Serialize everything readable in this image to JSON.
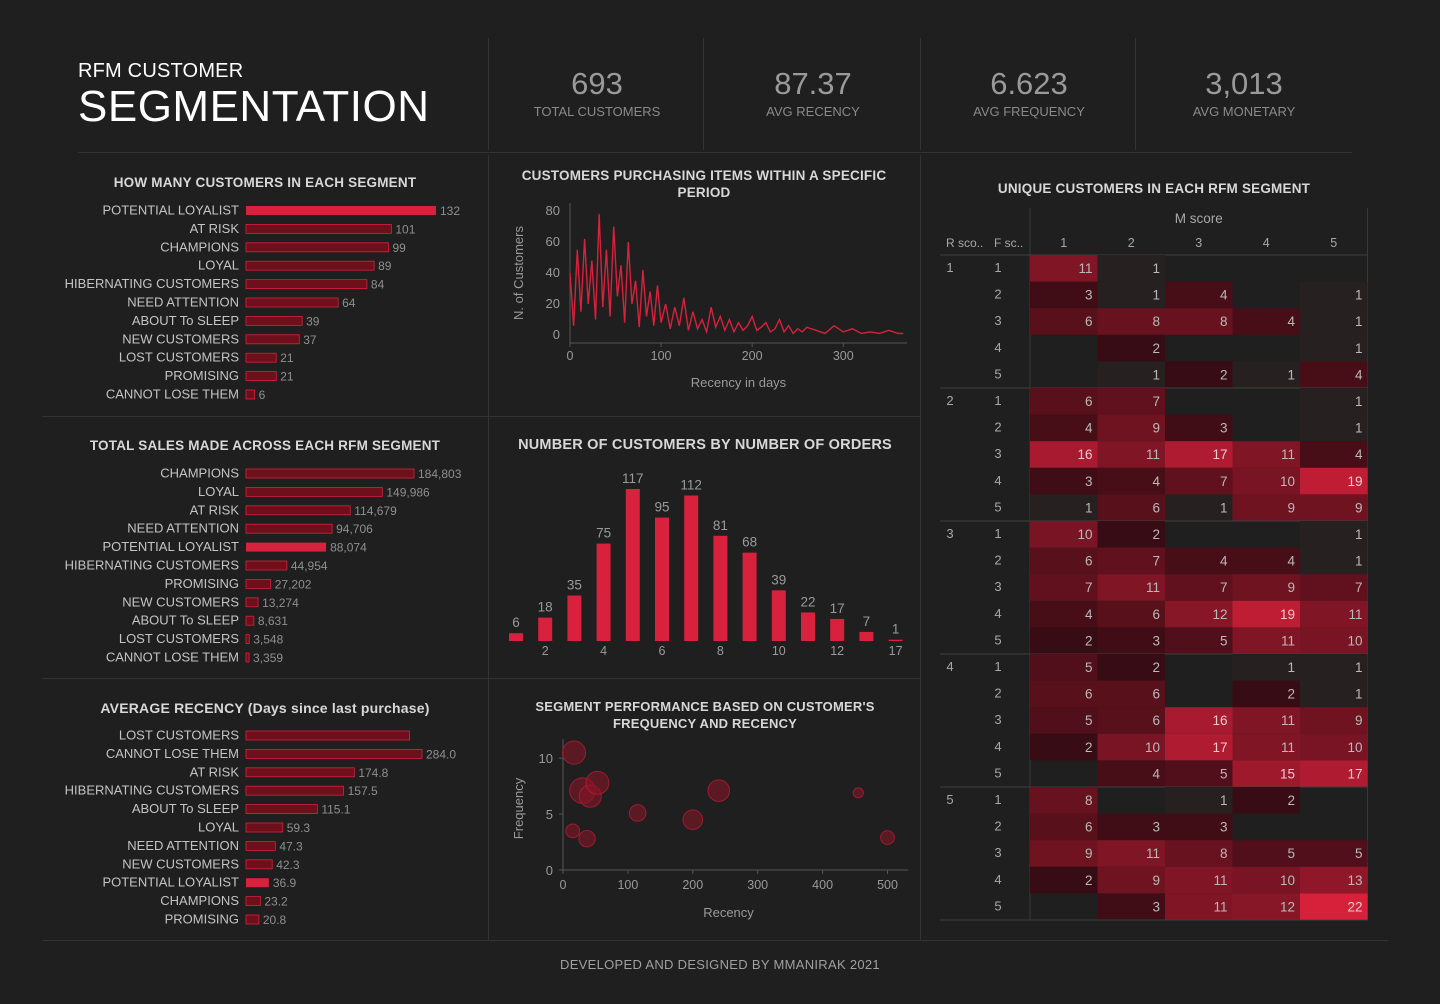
{
  "header": {
    "title_small": "RFM CUSTOMER",
    "title_big": "SEGMENTATION"
  },
  "kpis": [
    {
      "value": "693",
      "label": "TOTAL CUSTOMERS"
    },
    {
      "value": "87.37",
      "label": "AVG RECENCY"
    },
    {
      "value": "6.623",
      "label": "AVG FREQUENCY"
    },
    {
      "value": "3,013",
      "label": "AVG MONETARY"
    }
  ],
  "footer": "DEVELOPED AND DESIGNED BY MMANIRAK 2021",
  "colors": {
    "bar": "#d7213d",
    "bar_dark": "#6e0f1c",
    "background": "#1f1f1f"
  },
  "chart_data": [
    {
      "id": "segment_counts",
      "type": "bar",
      "title": "HOW MANY CUSTOMERS IN EACH SEGMENT",
      "orientation": "horizontal",
      "categories": [
        "POTENTIAL LOYALIST",
        "AT RISK",
        "CHAMPIONS",
        "LOYAL",
        "HIBERNATING CUSTOMERS",
        "NEED ATTENTION",
        "ABOUT To SLEEP",
        "NEW CUSTOMERS",
        "LOST CUSTOMERS",
        "PROMISING",
        "CANNOT LOSE THEM"
      ],
      "values": [
        132,
        101,
        99,
        89,
        84,
        64,
        39,
        37,
        21,
        21,
        6
      ],
      "labels": [
        "132",
        "101",
        "99",
        "89",
        "84",
        "64",
        "39",
        "37",
        "21",
        "21",
        "6"
      ],
      "highlight": [
        0
      ]
    },
    {
      "id": "segment_sales",
      "type": "bar",
      "title": "TOTAL SALES MADE ACROSS EACH RFM SEGMENT",
      "orientation": "horizontal",
      "categories": [
        "CHAMPIONS",
        "LOYAL",
        "AT RISK",
        "NEED ATTENTION",
        "POTENTIAL LOYALIST",
        "HIBERNATING CUSTOMERS",
        "PROMISING",
        "NEW CUSTOMERS",
        "ABOUT To SLEEP",
        "LOST CUSTOMERS",
        "CANNOT LOSE THEM"
      ],
      "values": [
        184803,
        149986,
        114679,
        94706,
        88074,
        44954,
        27202,
        13274,
        8631,
        3548,
        3359
      ],
      "labels": [
        "184,803",
        "149,986",
        "114,679",
        "94,706",
        "88,074",
        "44,954",
        "27,202",
        "13,274",
        "8,631",
        "3,548",
        "3,359"
      ],
      "highlight": [
        4
      ]
    },
    {
      "id": "segment_recency",
      "type": "bar",
      "title": "AVERAGE RECENCY (Days since last purchase)",
      "orientation": "horizontal",
      "categories": [
        "LOST CUSTOMERS",
        "CANNOT LOSE THEM",
        "AT RISK",
        "HIBERNATING CUSTOMERS",
        "ABOUT To SLEEP",
        "LOYAL",
        "NEED ATTENTION",
        "NEW CUSTOMERS",
        "POTENTIAL LOYALIST",
        "CHAMPIONS",
        "PROMISING"
      ],
      "values": [
        264.0,
        284.0,
        174.8,
        157.5,
        115.1,
        59.3,
        47.3,
        42.3,
        36.9,
        23.2,
        20.8
      ],
      "labels": [
        "",
        "284.0",
        "174.8",
        "157.5",
        "115.1",
        "59.3",
        "47.3",
        "42.3",
        "36.9",
        "23.2",
        "20.8"
      ],
      "highlight": [
        8
      ]
    },
    {
      "id": "recency_distribution",
      "type": "line",
      "title": "CUSTOMERS PURCHASING ITEMS WITHIN A SPECIFIC PERIOD",
      "xlabel": "Recency in days",
      "ylabel": "N. of Customers",
      "xlim": [
        0,
        370
      ],
      "ylim": [
        0,
        80
      ],
      "xticks": [
        0,
        100,
        200,
        300
      ],
      "yticks": [
        0,
        20,
        40,
        60,
        80
      ],
      "x": [
        0,
        4,
        8,
        12,
        16,
        20,
        24,
        28,
        32,
        36,
        40,
        44,
        48,
        52,
        56,
        60,
        64,
        68,
        72,
        76,
        80,
        84,
        88,
        92,
        96,
        100,
        105,
        110,
        115,
        120,
        125,
        130,
        135,
        140,
        145,
        150,
        155,
        160,
        165,
        170,
        175,
        180,
        185,
        190,
        195,
        200,
        205,
        210,
        215,
        220,
        225,
        230,
        235,
        240,
        245,
        250,
        255,
        260,
        270,
        280,
        290,
        300,
        310,
        320,
        330,
        340,
        350,
        360,
        366
      ],
      "y": [
        40,
        6,
        55,
        15,
        62,
        20,
        48,
        10,
        78,
        18,
        55,
        12,
        70,
        25,
        45,
        8,
        60,
        20,
        35,
        5,
        42,
        12,
        28,
        6,
        32,
        8,
        20,
        4,
        18,
        6,
        24,
        3,
        15,
        4,
        10,
        2,
        18,
        5,
        12,
        3,
        10,
        2,
        8,
        3,
        6,
        12,
        3,
        5,
        8,
        2,
        4,
        10,
        2,
        6,
        1,
        4,
        2,
        5,
        3,
        1,
        6,
        2,
        4,
        1,
        2,
        1,
        3,
        1,
        1
      ]
    },
    {
      "id": "orders_histogram",
      "type": "bar",
      "title": "NUMBER OF CUSTOMERS BY NUMBER OF ORDERS",
      "categories": [
        1,
        2,
        3,
        4,
        5,
        6,
        7,
        8,
        9,
        10,
        11,
        12,
        13,
        14
      ],
      "x_tick_labels": [
        "",
        "2",
        "",
        "4",
        "",
        "6",
        "",
        "8",
        "",
        "10",
        "",
        "12",
        "",
        "17"
      ],
      "values": [
        6,
        18,
        35,
        75,
        117,
        95,
        112,
        81,
        68,
        39,
        22,
        17,
        7,
        1
      ]
    },
    {
      "id": "segment_bubbles",
      "type": "scatter",
      "title": "SEGMENT PERFORMANCE BASED ON CUSTOMER'S FREQUENCY AND RECENCY",
      "xlabel": "Recency",
      "ylabel": "Frequency",
      "xlim": [
        0,
        510
      ],
      "ylim": [
        0,
        11
      ],
      "xticks": [
        0,
        100,
        200,
        300,
        400,
        500
      ],
      "yticks": [
        0,
        5,
        10
      ],
      "points": [
        {
          "x": 17,
          "y": 10.5,
          "size": 101
        },
        {
          "x": 30,
          "y": 7.1,
          "size": 132
        },
        {
          "x": 42,
          "y": 6.6,
          "size": 89
        },
        {
          "x": 53,
          "y": 7.8,
          "size": 99
        },
        {
          "x": 115,
          "y": 5.1,
          "size": 39
        },
        {
          "x": 240,
          "y": 7.1,
          "size": 84
        },
        {
          "x": 200,
          "y": 4.5,
          "size": 64
        },
        {
          "x": 15,
          "y": 3.5,
          "size": 21
        },
        {
          "x": 37,
          "y": 2.8,
          "size": 37
        },
        {
          "x": 455,
          "y": 6.9,
          "size": 6
        },
        {
          "x": 500,
          "y": 2.9,
          "size": 21
        }
      ]
    },
    {
      "id": "rfm_heatmap",
      "type": "heatmap",
      "title": "UNIQUE CUSTOMERS IN EACH RFM SEGMENT",
      "column_group_label": "M score",
      "row_header_r": "R sco..",
      "row_header_f": "F sc..",
      "columns": [
        "1",
        "2",
        "3",
        "4",
        "5"
      ],
      "r_scores": [
        "1",
        "2",
        "3",
        "4",
        "5"
      ],
      "f_scores": [
        "1",
        "2",
        "3",
        "4",
        "5"
      ],
      "values": [
        [
          [
            11,
            1,
            null,
            null,
            null
          ],
          [
            3,
            1,
            4,
            null,
            1
          ],
          [
            6,
            8,
            8,
            4,
            1
          ],
          [
            null,
            2,
            null,
            null,
            1
          ],
          [
            null,
            1,
            2,
            1,
            4
          ]
        ],
        [
          [
            6,
            7,
            null,
            null,
            1
          ],
          [
            4,
            9,
            3,
            null,
            1
          ],
          [
            16,
            11,
            17,
            11,
            4
          ],
          [
            3,
            4,
            7,
            10,
            19
          ],
          [
            1,
            6,
            1,
            9,
            9
          ]
        ],
        [
          [
            10,
            2,
            null,
            null,
            1
          ],
          [
            6,
            7,
            4,
            4,
            1
          ],
          [
            7,
            11,
            7,
            9,
            7
          ],
          [
            4,
            6,
            12,
            19,
            11
          ],
          [
            2,
            3,
            5,
            11,
            10
          ]
        ],
        [
          [
            5,
            2,
            null,
            1,
            1
          ],
          [
            6,
            6,
            null,
            2,
            1
          ],
          [
            5,
            6,
            16,
            11,
            9
          ],
          [
            2,
            10,
            17,
            11,
            10
          ],
          [
            null,
            4,
            5,
            15,
            17
          ]
        ],
        [
          [
            8,
            null,
            1,
            2,
            null
          ],
          [
            6,
            3,
            3,
            null,
            null
          ],
          [
            9,
            11,
            8,
            5,
            5
          ],
          [
            2,
            9,
            11,
            10,
            13
          ],
          [
            null,
            3,
            11,
            12,
            22
          ]
        ]
      ]
    }
  ]
}
